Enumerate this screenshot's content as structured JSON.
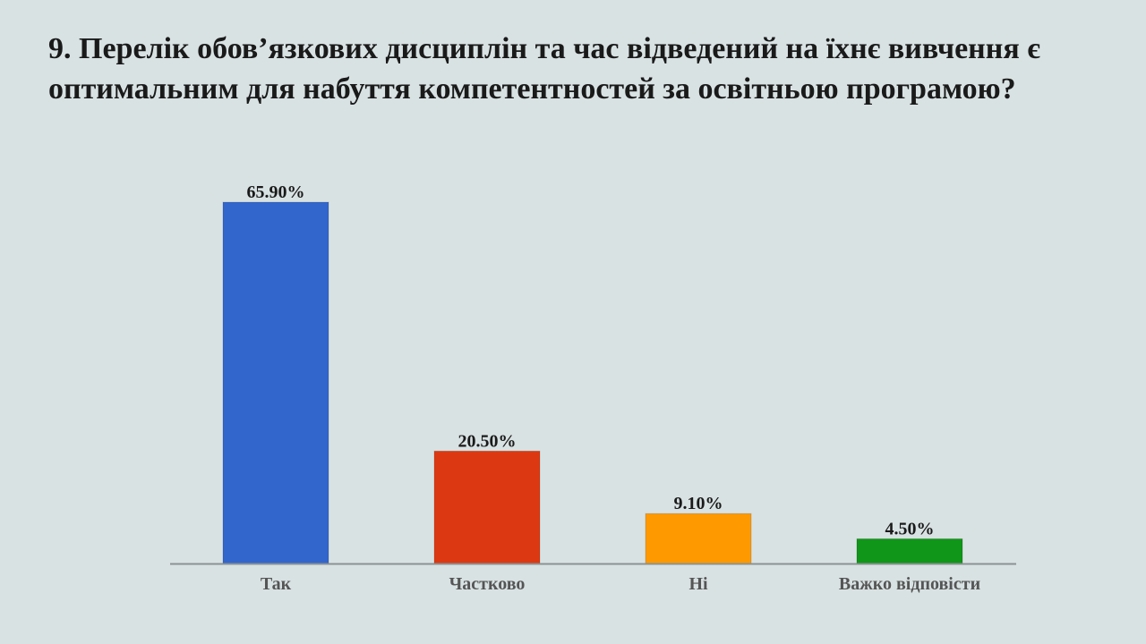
{
  "slide": {
    "title": "9. Перелік обов’язкових дисциплін та час відведений на їхнє вивчення є оптимальним для набуття компетентностей за освітньою програмою?"
  },
  "chart_data": {
    "type": "bar",
    "categories": [
      "Так",
      "Частково",
      "Ні",
      "Важко відповісти"
    ],
    "values": [
      65.9,
      20.5,
      9.1,
      4.5
    ],
    "value_labels": [
      "65.90%",
      "20.50%",
      "9.10%",
      "4.50%"
    ],
    "colors": [
      "#3366cc",
      "#dc3912",
      "#ff9900",
      "#109618"
    ],
    "title": "",
    "xlabel": "",
    "ylabel": "",
    "ylim": [
      0,
      70
    ],
    "grid": false,
    "legend": "none"
  }
}
